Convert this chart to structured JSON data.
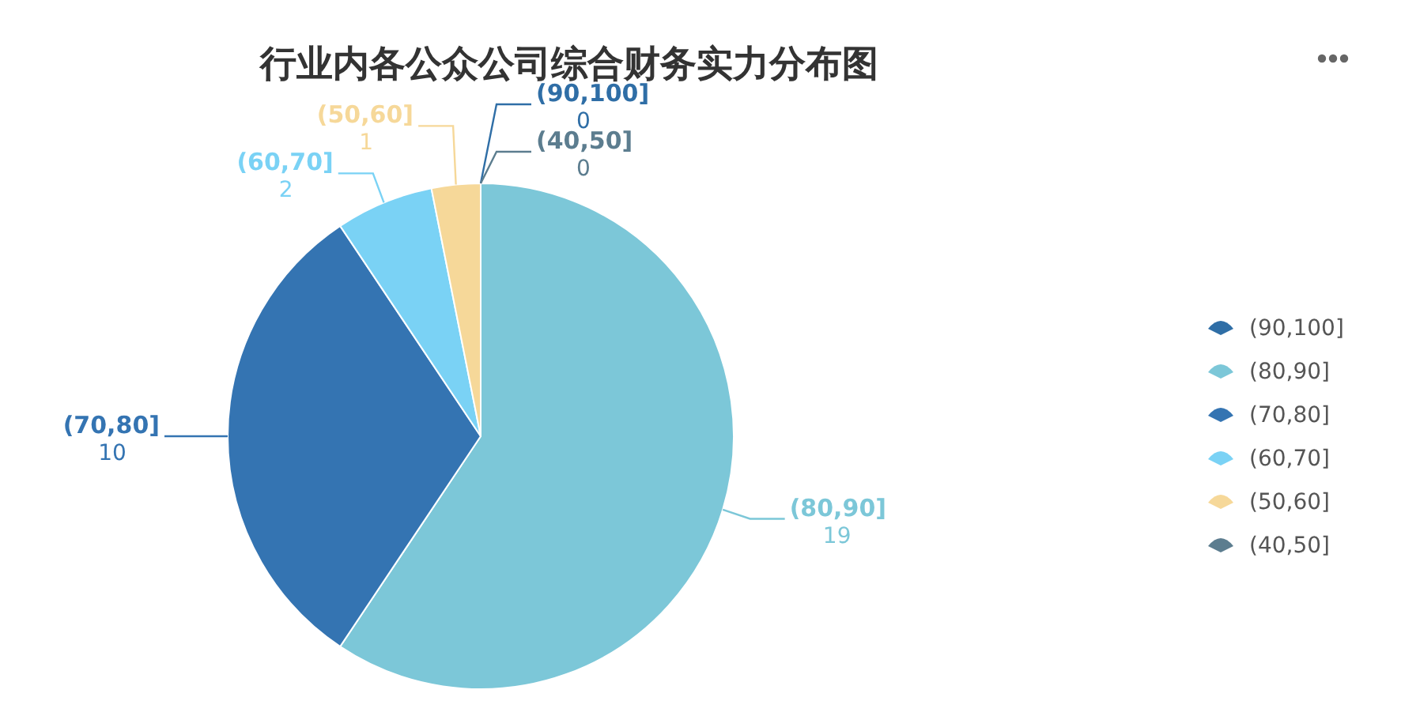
{
  "chart_data": {
    "type": "pie",
    "title": "行业内各公众公司综合财务实力分布图",
    "categories": [
      "(90,100]",
      "(80,90]",
      "(70,80]",
      "(60,70]",
      "(50,60]",
      "(40,50]"
    ],
    "values": [
      0,
      19,
      10,
      2,
      1,
      0
    ],
    "colors": [
      "#2f6ea6",
      "#7cc7d8",
      "#3474b2",
      "#7ad2f5",
      "#f6d899",
      "#5c7d8f"
    ],
    "value_labels": [
      "0",
      "19",
      "10",
      "2",
      "1",
      "0"
    ],
    "legend": "right"
  }
}
